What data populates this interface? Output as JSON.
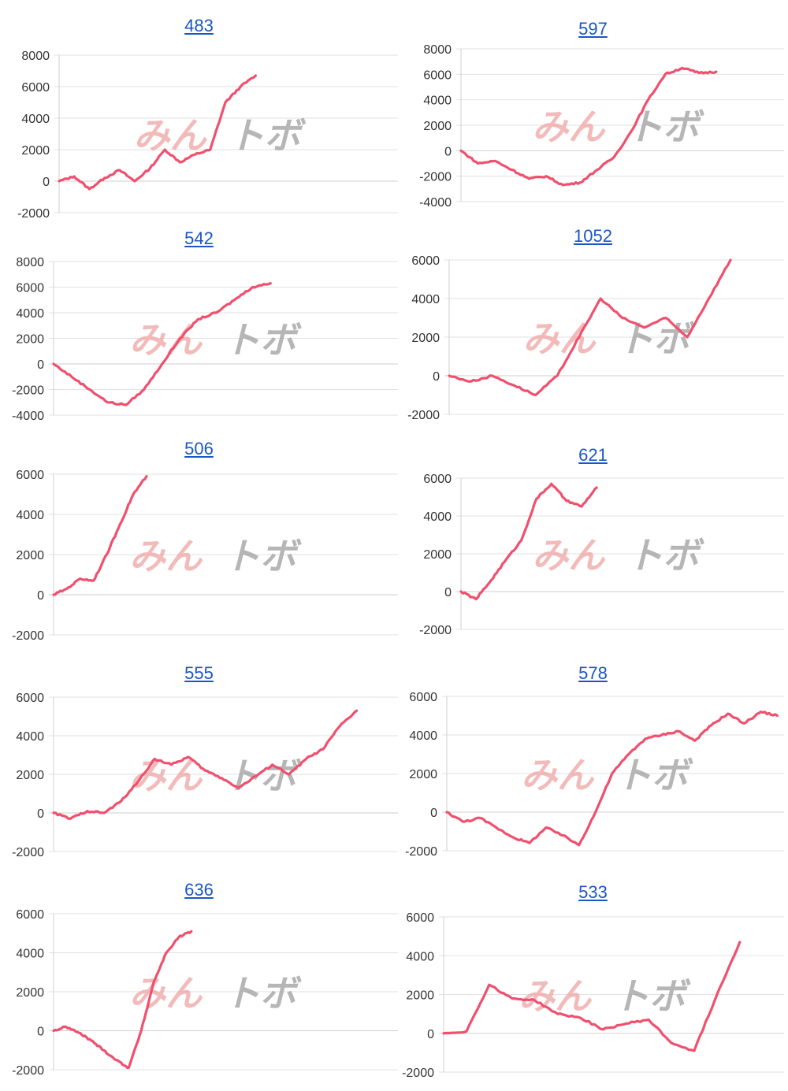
{
  "watermark": {
    "text_a": "みん",
    "text_b": "ト",
    "text_c": "ボ"
  },
  "colors": {
    "series": "#f0506e",
    "link": "#1a56c7",
    "grid": "#e2e2e2"
  },
  "chart_data": [
    {
      "type": "line",
      "title": "483",
      "yticks": [
        "8000",
        "6000",
        "4000",
        "2000",
        "0",
        "-2000"
      ],
      "ylim": [
        -2000,
        8000
      ],
      "values": [
        0,
        300,
        -500,
        200,
        700,
        0,
        800,
        2000,
        1200,
        1700,
        2000,
        5000,
        6000,
        6700
      ]
    },
    {
      "type": "line",
      "title": "597",
      "yticks": [
        "8000",
        "6000",
        "4000",
        "2000",
        "0",
        "-2000",
        "-4000"
      ],
      "ylim": [
        -4000,
        8000
      ],
      "values": [
        0,
        -1000,
        -800,
        -1500,
        -2200,
        -2000,
        -2700,
        -2500,
        -1500,
        -500,
        1500,
        4000,
        6000,
        6500,
        6100,
        6200
      ]
    },
    {
      "type": "line",
      "title": "542",
      "yticks": [
        "8000",
        "6000",
        "4000",
        "2000",
        "0",
        "-2000",
        "-4000"
      ],
      "ylim": [
        -4000,
        8000
      ],
      "values": [
        0,
        -1000,
        -2000,
        -3000,
        -3200,
        -2000,
        0,
        2000,
        3500,
        4000,
        5000,
        6000,
        6300
      ]
    },
    {
      "type": "line",
      "title": "1052",
      "yticks": [
        "6000",
        "4000",
        "2000",
        "0",
        "-2000"
      ],
      "ylim": [
        -2000,
        6000
      ],
      "values": [
        0,
        -300,
        0,
        -500,
        -1000,
        0,
        2000,
        4000,
        3000,
        2500,
        3000,
        2000,
        4000,
        6000
      ]
    },
    {
      "type": "line",
      "title": "506",
      "yticks": [
        "6000",
        "4000",
        "2000",
        "0",
        "-2000"
      ],
      "ylim": [
        -2000,
        6000
      ],
      "values": [
        0,
        300,
        800,
        700,
        2000,
        3500,
        5000,
        5900
      ]
    },
    {
      "type": "line",
      "title": "621",
      "yticks": [
        "6000",
        "4000",
        "2000",
        "0",
        "-2000"
      ],
      "ylim": [
        -2000,
        6000
      ],
      "values": [
        0,
        -400,
        600,
        1700,
        2700,
        4900,
        5700,
        4800,
        4500,
        5500
      ]
    },
    {
      "type": "line",
      "title": "555",
      "yticks": [
        "6000",
        "4000",
        "2000",
        "0",
        "-2000"
      ],
      "ylim": [
        -2000,
        6000
      ],
      "values": [
        0,
        -300,
        100,
        0,
        600,
        1600,
        2800,
        2500,
        2900,
        2200,
        1800,
        1300,
        1900,
        2500,
        2000,
        2800,
        3300,
        4500,
        5300
      ]
    },
    {
      "type": "line",
      "title": "578",
      "yticks": [
        "6000",
        "4000",
        "2000",
        "0",
        "-2000"
      ],
      "ylim": [
        -2000,
        6000
      ],
      "values": [
        0,
        -500,
        -300,
        -800,
        -1300,
        -1600,
        -800,
        -1200,
        -1700,
        0,
        2000,
        3000,
        3800,
        4000,
        4200,
        3700,
        4500,
        5100,
        4600,
        5200,
        5000
      ]
    },
    {
      "type": "line",
      "title": "636",
      "yticks": [
        "6000",
        "4000",
        "2000",
        "0",
        "-2000"
      ],
      "ylim": [
        -2000,
        6000
      ],
      "values": [
        0,
        200,
        -100,
        -500,
        -1000,
        -1500,
        -1900,
        0,
        2500,
        4000,
        4800,
        5100
      ]
    },
    {
      "type": "line",
      "title": "533",
      "yticks": [
        "6000",
        "4000",
        "2000",
        "0",
        "-2000"
      ],
      "ylim": [
        -2000,
        6000
      ],
      "values": [
        0,
        100,
        2500,
        1800,
        1700,
        1000,
        800,
        200,
        500,
        700,
        -500,
        -900,
        2000,
        4700
      ]
    }
  ]
}
